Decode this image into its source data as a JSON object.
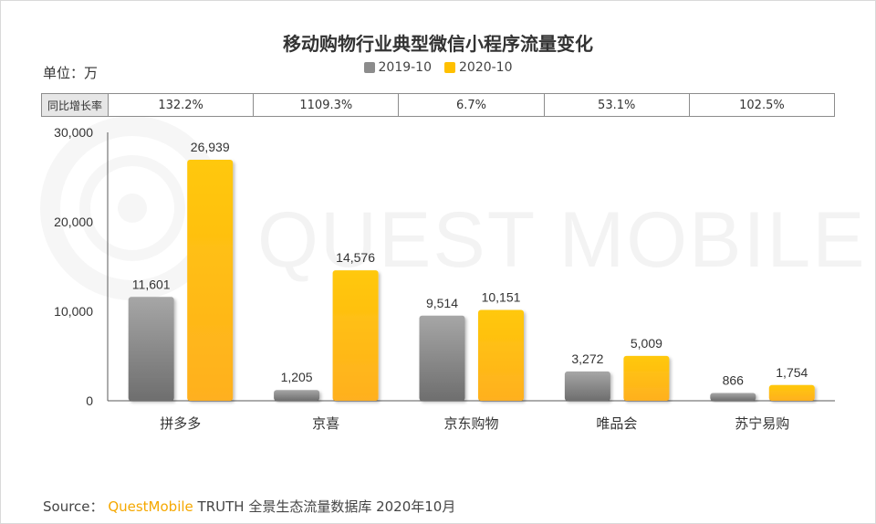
{
  "title": "移动购物行业典型微信小程序流量变化",
  "unit_label": "单位：万",
  "legend": [
    {
      "name": "2019-10",
      "color": "#8c8c8c"
    },
    {
      "name": "2020-10",
      "color": "#ffc000"
    }
  ],
  "growth_row": {
    "header": "同比增长率",
    "values": [
      "132.2%",
      "1109.3%",
      "6.7%",
      "53.1%",
      "102.5%"
    ]
  },
  "chart_data": {
    "type": "bar",
    "categories": [
      "拼多多",
      "京喜",
      "京东购物",
      "唯品会",
      "苏宁易购"
    ],
    "series": [
      {
        "name": "2019-10",
        "values": [
          11601,
          1205,
          9514,
          3272,
          866
        ],
        "labels": [
          "11,601",
          "1,205",
          "9,514",
          "3,272",
          "866"
        ]
      },
      {
        "name": "2020-10",
        "values": [
          26939,
          14576,
          10151,
          5009,
          1754
        ],
        "labels": [
          "26,939",
          "14,576",
          "10,151",
          "5,009",
          "1,754"
        ]
      }
    ],
    "ylim": [
      0,
      30000
    ],
    "yticks": [
      0,
      10000,
      20000,
      30000
    ],
    "ytick_labels": [
      "0",
      "10,000",
      "20,000",
      "30,000"
    ],
    "grid": false,
    "legend_position": "top-center"
  },
  "watermark": "QUEST MOBILE",
  "source": {
    "prefix": "Source：",
    "brand": "QuestMobile",
    "rest": "TRUTH 全景生态流量数据库 2020年10月"
  }
}
